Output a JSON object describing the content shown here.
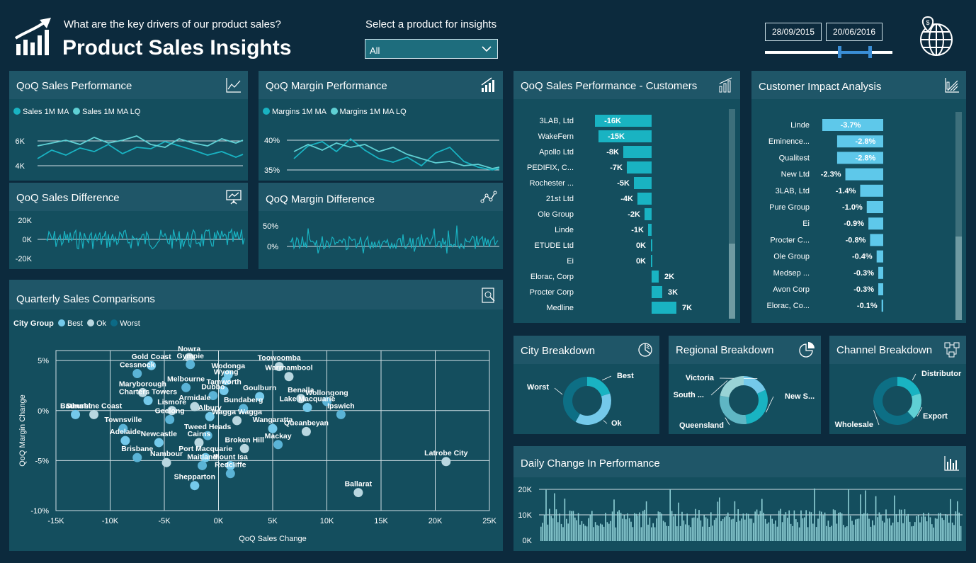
{
  "header": {
    "question": "What are the key drivers of our product sales?",
    "title": "Product Sales Insights",
    "product_label": "Select a product for insights",
    "product_value": "All",
    "date_start": "28/09/2015",
    "date_end": "20/06/2016",
    "icons": {
      "logo": "bar-chart-growth-icon",
      "globe": "globe-dollar-icon"
    }
  },
  "colors": {
    "bg": "#0c2a3d",
    "panel": "#144e5e",
    "panel_header": "#1f5668",
    "teal": "#19b3c2",
    "light_teal": "#5fd0d4",
    "sky": "#74c9ea",
    "bar": "#19b3c2",
    "bar_light": "#5ec8ea"
  },
  "panels": {
    "sales_perf": {
      "title": "QoQ Sales Performance",
      "legend": [
        "Sales 1M MA",
        "Sales 1M MA LQ"
      ],
      "ticks": [
        "6K",
        "4K"
      ]
    },
    "margin_perf": {
      "title": "QoQ Margin Performance",
      "legend": [
        "Margins 1M MA",
        "Margins 1M MA LQ"
      ],
      "ticks": [
        "40%",
        "35%"
      ]
    },
    "sales_diff": {
      "title": "QoQ Sales Difference",
      "ticks": [
        "20K",
        "0K",
        "-20K"
      ]
    },
    "margin_diff": {
      "title": "QoQ Margin Difference",
      "ticks": [
        "50%",
        "0%"
      ]
    },
    "customers": {
      "title": "QoQ Sales Performance - Customers"
    },
    "impact": {
      "title": "Customer Impact Analysis"
    },
    "quarterly": {
      "title": "Quarterly Sales Comparisons",
      "legend_title": "City Group",
      "legend": [
        "Best",
        "Ok",
        "Worst"
      ]
    },
    "city": {
      "title": "City Breakdown"
    },
    "regional": {
      "title": "Regional Breakdown"
    },
    "channel": {
      "title": "Channel Breakdown"
    },
    "daily": {
      "title": "Daily Change In Performance",
      "ticks": [
        "20K",
        "10K",
        "0K"
      ]
    }
  },
  "chart_data": [
    {
      "type": "bar",
      "id": "customers",
      "categories": [
        "3LAB, Ltd",
        "WakeFern",
        "Apollo Ltd",
        "PEDIFIX, C...",
        "Rochester ...",
        "21st Ltd",
        "Ole Group",
        "Linde",
        "ETUDE Ltd",
        "Ei",
        "Elorac, Corp",
        "Procter Corp",
        "Medline"
      ],
      "values": [
        -16000,
        -15000,
        -8000,
        -7000,
        -5000,
        -4000,
        -2000,
        -1000,
        0,
        0,
        2000,
        3000,
        7000
      ],
      "labels": [
        "-16K",
        "-15K",
        "-8K",
        "-7K",
        "-5K",
        "-4K",
        "-2K",
        "-1K",
        "0K",
        "0K",
        "2K",
        "3K",
        "7K"
      ]
    },
    {
      "type": "bar",
      "id": "impact",
      "categories": [
        "Linde",
        "Eminence...",
        "Qualitest",
        "New Ltd",
        "3LAB, Ltd",
        "Pure Group",
        "Ei",
        "Procter C...",
        "Ole Group",
        "Medsep ...",
        "Avon Corp",
        "Elorac, Co..."
      ],
      "values": [
        -3.7,
        -2.8,
        -2.8,
        -2.3,
        -1.4,
        -1.0,
        -0.9,
        -0.8,
        -0.4,
        -0.3,
        -0.3,
        -0.1
      ],
      "labels": [
        "-3.7%",
        "-2.8%",
        "-2.8%",
        "-2.3%",
        "-1.4%",
        "-1.0%",
        "-0.9%",
        "-0.8%",
        "-0.4%",
        "-0.3%",
        "-0.3%",
        "-0.1%"
      ]
    },
    {
      "type": "scatter",
      "id": "quarterly",
      "xlabel": "QoQ Sales Change",
      "ylabel": "QoQ Margin Change",
      "xlim": [
        -15000,
        25000
      ],
      "ylim": [
        -10,
        6
      ],
      "xticks": [
        "-15K",
        "-10K",
        "-5K",
        "0K",
        "5K",
        "10K",
        "15K",
        "20K",
        "25K"
      ],
      "yticks": [
        "5%",
        "0%",
        "-5%",
        "-10%"
      ],
      "points": [
        {
          "name": "Gold Coast",
          "x": -6200,
          "y": 4.5
        },
        {
          "name": "Nowra",
          "x": -2700,
          "y": 5.3
        },
        {
          "name": "Gympie",
          "x": -2600,
          "y": 4.6
        },
        {
          "name": "Wodonga",
          "x": 900,
          "y": 3.6
        },
        {
          "name": "Toowoomba",
          "x": 5600,
          "y": 4.4
        },
        {
          "name": "Cessnock",
          "x": -7500,
          "y": 3.7
        },
        {
          "name": "Wyong",
          "x": 700,
          "y": 3.0
        },
        {
          "name": "Warrnambool",
          "x": 6500,
          "y": 3.4
        },
        {
          "name": "Melbourne",
          "x": -3000,
          "y": 2.3
        },
        {
          "name": "Tamworth",
          "x": 500,
          "y": 2.0
        },
        {
          "name": "Maryborough",
          "x": -7000,
          "y": 1.8
        },
        {
          "name": "Dubbo",
          "x": -500,
          "y": 1.5
        },
        {
          "name": "Goulburn",
          "x": 3800,
          "y": 1.4
        },
        {
          "name": "Benalla",
          "x": 7600,
          "y": 1.2
        },
        {
          "name": "Wollongong",
          "x": 10000,
          "y": 0.9
        },
        {
          "name": "Charters Towers",
          "x": -6500,
          "y": 1.0
        },
        {
          "name": "Armidale",
          "x": -2200,
          "y": 0.4
        },
        {
          "name": "Bundaberg",
          "x": 2300,
          "y": 0.2
        },
        {
          "name": "Lake Macquarie",
          "x": 8200,
          "y": 0.3
        },
        {
          "name": "Lismore",
          "x": -4300,
          "y": 0.0
        },
        {
          "name": "Ipswich",
          "x": 11300,
          "y": -0.4
        },
        {
          "name": "Bathurst",
          "x": -13200,
          "y": -0.4
        },
        {
          "name": "Sunshine Coast",
          "x": -11500,
          "y": -0.4
        },
        {
          "name": "Geelong",
          "x": -4500,
          "y": -0.9
        },
        {
          "name": "Albury",
          "x": -800,
          "y": -0.6
        },
        {
          "name": "Wagga Wagga",
          "x": 1700,
          "y": -1.0
        },
        {
          "name": "Townsville",
          "x": -8800,
          "y": -1.8
        },
        {
          "name": "Wangaratta",
          "x": 5000,
          "y": -1.8
        },
        {
          "name": "Queanbeyan",
          "x": 8100,
          "y": -2.1
        },
        {
          "name": "Tweed Heads",
          "x": -1000,
          "y": -2.5
        },
        {
          "name": "Newcastle",
          "x": -5500,
          "y": -3.2
        },
        {
          "name": "Cairns",
          "x": -1800,
          "y": -3.2
        },
        {
          "name": "Mackay",
          "x": 5500,
          "y": -3.4
        },
        {
          "name": "Adelaide",
          "x": -8600,
          "y": -3.0
        },
        {
          "name": "Broken Hill",
          "x": 2400,
          "y": -3.8
        },
        {
          "name": "Brisbane",
          "x": -7500,
          "y": -4.7
        },
        {
          "name": "Port Macquarie",
          "x": -1200,
          "y": -4.7
        },
        {
          "name": "Nambour",
          "x": -4800,
          "y": -5.2
        },
        {
          "name": "Maitland",
          "x": -1500,
          "y": -5.5
        },
        {
          "name": "Mount Isa",
          "x": 1100,
          "y": -5.5
        },
        {
          "name": "Latrobe City",
          "x": 21000,
          "y": -5.1
        },
        {
          "name": "Redcliffe",
          "x": 1100,
          "y": -6.3
        },
        {
          "name": "Shepparton",
          "x": -2200,
          "y": -7.5
        },
        {
          "name": "Ballarat",
          "x": 12900,
          "y": -8.2
        }
      ]
    },
    {
      "type": "pie",
      "id": "city",
      "categories": [
        "Best",
        "Ok",
        "Worst"
      ],
      "values": [
        20,
        38,
        42
      ]
    },
    {
      "type": "pie",
      "id": "regional",
      "categories": [
        "Victoria",
        "New S...",
        "Queensland",
        "South ..."
      ],
      "values": [
        18,
        30,
        30,
        22
      ]
    },
    {
      "type": "pie",
      "id": "channel",
      "categories": [
        "Distributor",
        "Export",
        "Wholesale"
      ],
      "values": [
        20,
        18,
        62
      ]
    }
  ]
}
